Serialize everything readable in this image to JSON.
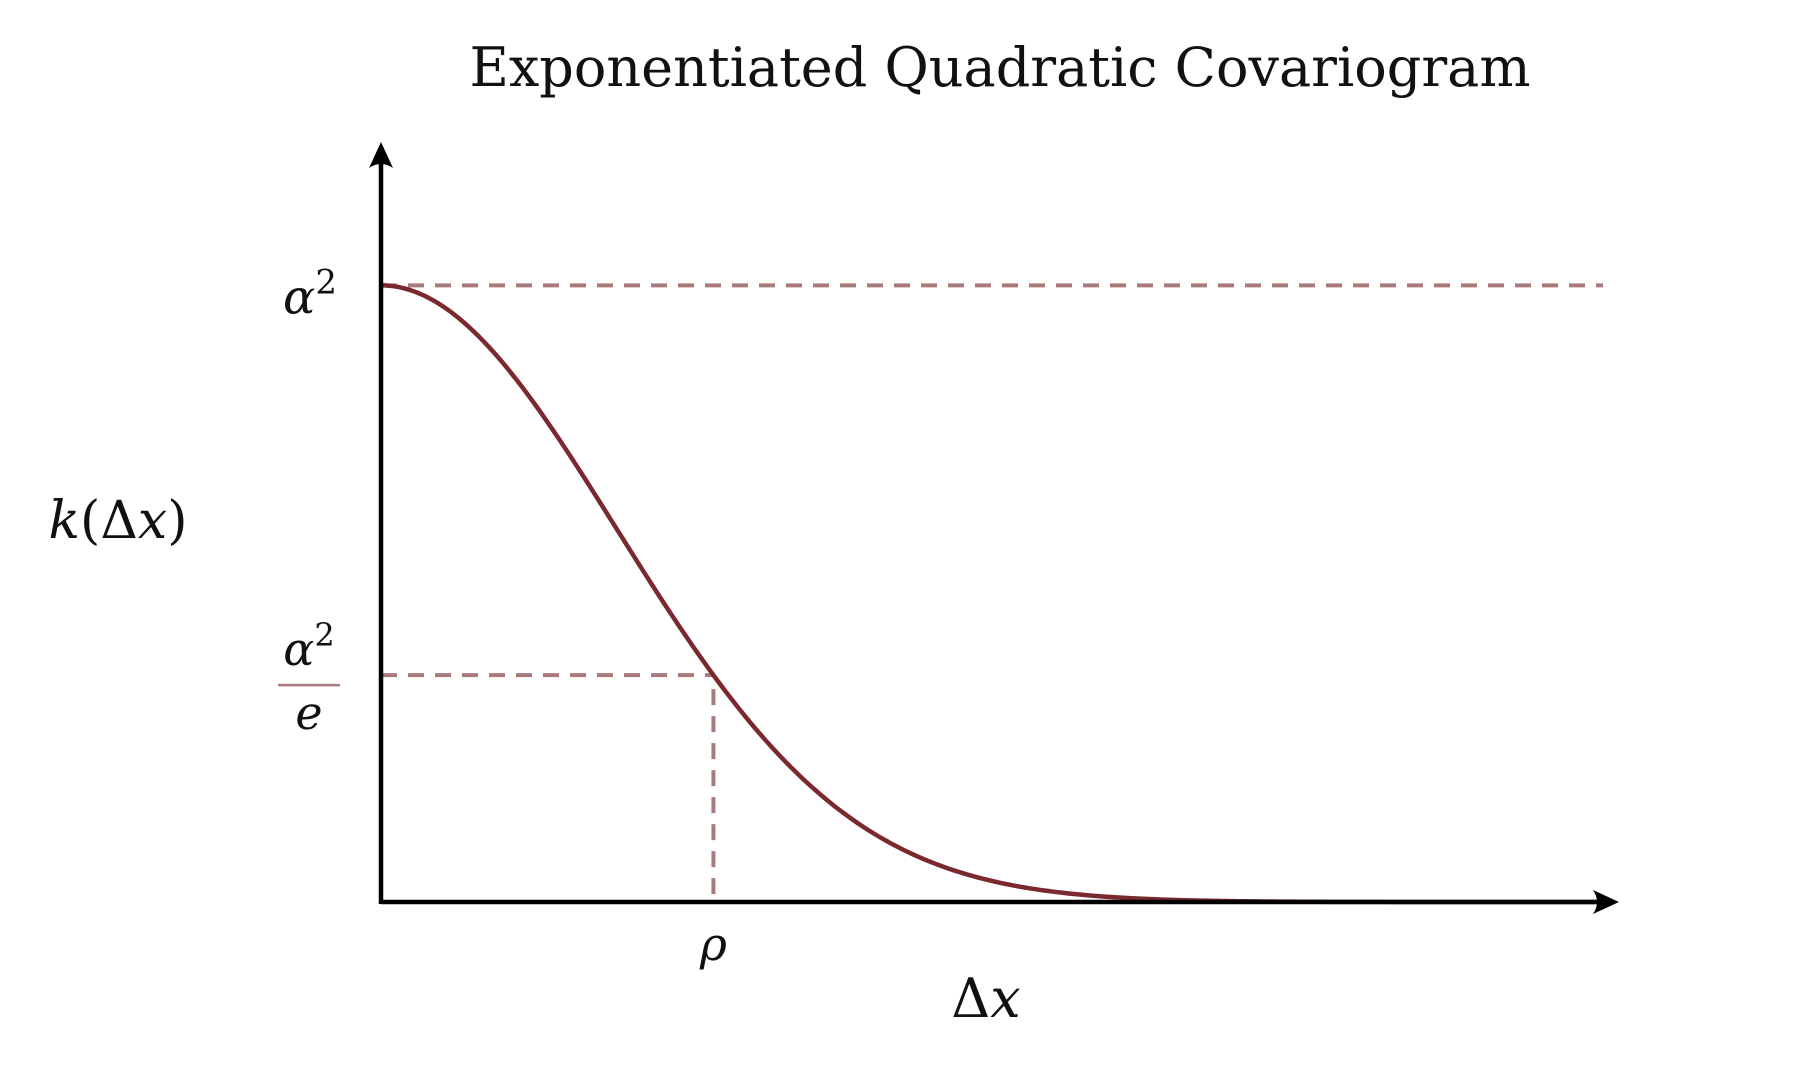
{
  "chart_data": {
    "type": "line",
    "title": "Exponentiated Quadratic Covariogram",
    "xlabel": {
      "var": "x",
      "prefix": "Δ"
    },
    "ylabel": {
      "fn": "k",
      "open": "(",
      "prefix": "Δ",
      "var": "x",
      "close": ")"
    },
    "function": "alpha^2 * exp(-(dx/rho)^2)",
    "rho": 1,
    "alpha_sq": 1,
    "xlim": [
      0,
      3.7
    ],
    "ylim": [
      0,
      1.2
    ],
    "annotations": {
      "alpha_sq_label": {
        "base": "α",
        "exp": "2"
      },
      "alpha_sq_over_e_label": {
        "num_base": "α",
        "num_exp": "2",
        "den": "e"
      },
      "rho_label": "ρ"
    },
    "grid": false,
    "legend": "none",
    "colors": {
      "curve": "#7a2a2f",
      "guide": "#a87a7c",
      "axis": "#000000"
    }
  }
}
